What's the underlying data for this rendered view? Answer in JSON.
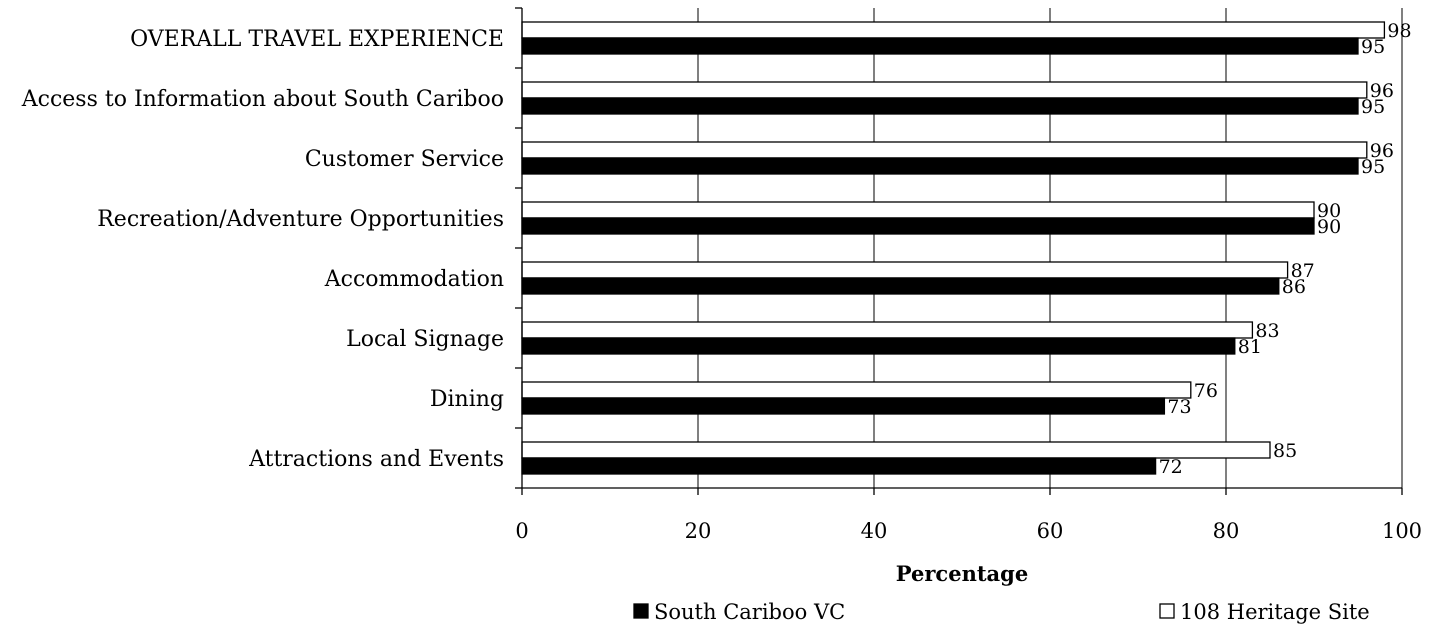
{
  "chart_data": {
    "type": "bar",
    "orientation": "horizontal",
    "categories": [
      "OVERALL TRAVEL EXPERIENCE",
      "Access to Information about South Cariboo",
      "Customer Service",
      "Recreation/Adventure Opportunities",
      "Accommodation",
      "Local Signage",
      "Dining",
      "Attractions and Events"
    ],
    "series": [
      {
        "name": "South Cariboo VC",
        "color": "#000000",
        "values": [
          95,
          95,
          95,
          90,
          86,
          81,
          73,
          72
        ]
      },
      {
        "name": "108 Heritage Site",
        "color": "#ffffff",
        "values": [
          98,
          96,
          96,
          90,
          87,
          83,
          76,
          85
        ]
      }
    ],
    "xlabel": "Percentage",
    "ylabel": "",
    "xlim": [
      0,
      100
    ],
    "xticks": [
      0,
      20,
      40,
      60,
      80,
      100
    ],
    "grid": "vertical",
    "legend": "bottom"
  }
}
